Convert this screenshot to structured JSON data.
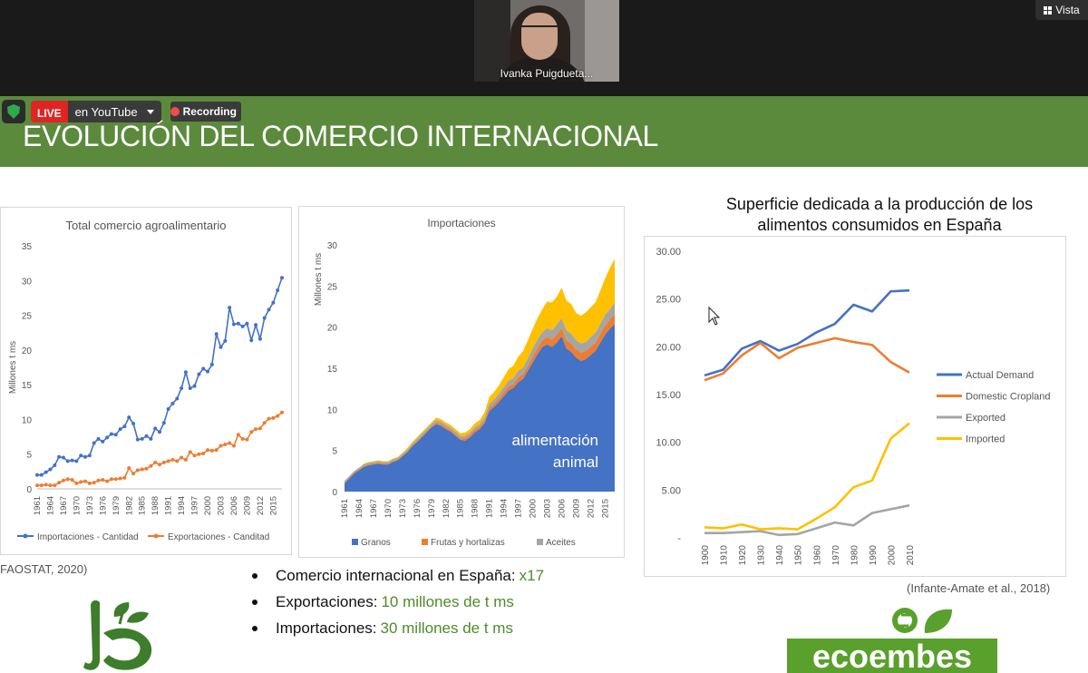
{
  "meeting": {
    "participant_name": "Ivanka Puigdueta...",
    "view_button_label": "Vista",
    "live_badge": "LIVE",
    "stream_target": "en YouTube",
    "recording_label": "Recording"
  },
  "slide": {
    "title": "EVOLUCIÓN DEL COMERCIO INTERNACIONAL",
    "source_left": "FAOSTAT, 2020)",
    "source_right": "(Infante-Amate et al., 2018)",
    "right_pane_title_line1": "Superficie dedicada a la producción de los",
    "right_pane_title_line2": "alimentos consumidos en España",
    "bullets": [
      {
        "text": "Comercio internacional en España:",
        "highlight": "x17"
      },
      {
        "text": "Exportaciones:",
        "highlight": "10 millones de t ms"
      },
      {
        "text": "Importaciones:",
        "highlight": "30 millones de t ms"
      }
    ],
    "logo_right_text": "ecoembes",
    "colors": {
      "green_band": "#5b8a3c",
      "highlight_green": "#4f8a2a",
      "blue": "#4472c4",
      "orange": "#ed7d31",
      "gray": "#a5a5a5",
      "yellow": "#ffc000"
    }
  },
  "chart_data": [
    {
      "type": "line",
      "title": "Total comercio agroalimentario",
      "ylabel": "Millones t ms",
      "ylim": [
        0,
        35
      ],
      "yticks": [
        "0",
        "5",
        "10",
        "15",
        "20",
        "25",
        "30",
        "35"
      ],
      "xticks": [
        "1961",
        "1964",
        "1967",
        "1970",
        "1973",
        "1976",
        "1979",
        "1982",
        "1985",
        "1988",
        "1991",
        "1994",
        "1997",
        "2000",
        "2003",
        "2006",
        "2009",
        "2012",
        "2015"
      ],
      "series": [
        {
          "name": "Importaciones - Cantidad",
          "color": "#4472c4",
          "x": [
            1961,
            1962,
            1963,
            1964,
            1965,
            1966,
            1967,
            1968,
            1969,
            1970,
            1971,
            1972,
            1973,
            1974,
            1975,
            1976,
            1977,
            1978,
            1979,
            1980,
            1981,
            1982,
            1983,
            1984,
            1985,
            1986,
            1987,
            1988,
            1989,
            1990,
            1991,
            1992,
            1993,
            1994,
            1995,
            1996,
            1997,
            1998,
            1999,
            2000,
            2001,
            2002,
            2003,
            2004,
            2005,
            2006,
            2007,
            2008,
            2009,
            2010,
            2011,
            2012,
            2013,
            2014,
            2015,
            2016,
            2017
          ],
          "y": [
            2.0,
            2.0,
            2.4,
            2.8,
            3.4,
            4.6,
            4.5,
            4.0,
            4.1,
            4.0,
            4.8,
            4.6,
            4.8,
            6.6,
            7.2,
            6.8,
            7.4,
            7.9,
            7.8,
            8.6,
            9.0,
            10.3,
            9.4,
            7.1,
            7.2,
            7.6,
            7.2,
            8.7,
            8.2,
            9.5,
            11.5,
            12.3,
            13.0,
            14.5,
            16.8,
            14.5,
            14.8,
            16.5,
            17.3,
            16.9,
            17.9,
            22.3,
            20.4,
            21.3,
            26.1,
            23.7,
            23.8,
            23.4,
            23.8,
            21.4,
            23.6,
            21.6,
            24.6,
            25.8,
            26.8,
            28.6,
            30.4
          ]
        },
        {
          "name": "Exportaciones - Canditad",
          "color": "#ed7d31",
          "x": [
            1961,
            1962,
            1963,
            1964,
            1965,
            1966,
            1967,
            1968,
            1969,
            1970,
            1971,
            1972,
            1973,
            1974,
            1975,
            1976,
            1977,
            1978,
            1979,
            1980,
            1981,
            1982,
            1983,
            1984,
            1985,
            1986,
            1987,
            1988,
            1989,
            1990,
            1991,
            1992,
            1993,
            1994,
            1995,
            1996,
            1997,
            1998,
            1999,
            2000,
            2001,
            2002,
            2003,
            2004,
            2005,
            2006,
            2007,
            2008,
            2009,
            2010,
            2011,
            2012,
            2013,
            2014,
            2015,
            2016,
            2017
          ],
          "y": [
            0.5,
            0.5,
            0.6,
            0.5,
            0.5,
            0.9,
            1.2,
            1.4,
            1.3,
            0.8,
            1.0,
            1.1,
            0.8,
            0.9,
            1.2,
            1.3,
            1.1,
            1.4,
            1.4,
            1.5,
            1.6,
            3.0,
            2.2,
            2.7,
            2.8,
            2.9,
            3.3,
            3.8,
            3.5,
            3.8,
            4.0,
            4.2,
            4.0,
            4.5,
            4.2,
            5.3,
            4.8,
            5.0,
            5.1,
            5.6,
            5.5,
            5.6,
            6.2,
            6.4,
            6.6,
            6.2,
            7.8,
            7.2,
            7.1,
            8.2,
            8.6,
            8.7,
            9.5,
            10.1,
            10.2,
            10.5,
            11.0
          ]
        }
      ],
      "legend": "bottom"
    },
    {
      "type": "area",
      "title": "Importaciones",
      "ylabel": "Millones t ms",
      "ylim": [
        0,
        30
      ],
      "yticks": [
        "0",
        "5",
        "10",
        "15",
        "20",
        "25",
        "30"
      ],
      "xticks": [
        "1961",
        "1964",
        "1967",
        "1970",
        "1973",
        "1976",
        "1979",
        "1982",
        "1985",
        "1988",
        "1991",
        "1994",
        "1997",
        "2000",
        "2003",
        "2006",
        "2009",
        "2012",
        "2015"
      ],
      "annotation": [
        "alimentación",
        "animal"
      ],
      "x": [
        1961,
        1962,
        1963,
        1964,
        1965,
        1966,
        1967,
        1968,
        1969,
        1970,
        1971,
        1972,
        1973,
        1974,
        1975,
        1976,
        1977,
        1978,
        1979,
        1980,
        1981,
        1982,
        1983,
        1984,
        1985,
        1986,
        1987,
        1988,
        1989,
        1990,
        1991,
        1992,
        1993,
        1994,
        1995,
        1996,
        1997,
        1998,
        1999,
        2000,
        2001,
        2002,
        2003,
        2004,
        2005,
        2006,
        2007,
        2008,
        2009,
        2010,
        2011,
        2012,
        2013,
        2014,
        2015,
        2016,
        2017
      ],
      "series": [
        {
          "name": "Granos",
          "color": "#4472c4",
          "values": [
            1.0,
            1.6,
            2.2,
            2.6,
            3.0,
            3.2,
            3.3,
            3.4,
            3.3,
            3.3,
            3.6,
            3.8,
            4.3,
            4.8,
            5.5,
            6.0,
            6.6,
            7.2,
            7.8,
            8.2,
            8.0,
            7.6,
            7.3,
            6.8,
            6.3,
            6.2,
            6.6,
            7.2,
            7.6,
            8.3,
            9.8,
            10.3,
            10.9,
            11.6,
            12.3,
            12.6,
            13.3,
            13.7,
            14.7,
            15.7,
            16.7,
            17.6,
            17.9,
            17.6,
            18.1,
            18.9,
            17.4,
            17.0,
            16.3,
            15.9,
            16.1,
            16.6,
            17.1,
            18.1,
            19.1,
            19.8,
            20.4
          ]
        },
        {
          "name": "Frutas y hortalizas",
          "color": "#ed7d31",
          "values": [
            0.1,
            0.1,
            0.1,
            0.1,
            0.1,
            0.1,
            0.1,
            0.1,
            0.1,
            0.1,
            0.1,
            0.1,
            0.1,
            0.1,
            0.1,
            0.1,
            0.1,
            0.1,
            0.1,
            0.2,
            0.2,
            0.2,
            0.2,
            0.2,
            0.2,
            0.3,
            0.3,
            0.3,
            0.3,
            0.3,
            0.4,
            0.4,
            0.4,
            0.5,
            0.5,
            0.5,
            0.6,
            0.6,
            0.6,
            0.7,
            0.8,
            0.8,
            0.9,
            0.9,
            1.0,
            1.0,
            1.0,
            1.0,
            1.0,
            1.0,
            1.0,
            1.0,
            1.0,
            1.1,
            1.1,
            1.1,
            1.2
          ]
        },
        {
          "name": "Aceites",
          "color": "#a5a5a5",
          "values": [
            0.2,
            0.2,
            0.2,
            0.2,
            0.2,
            0.2,
            0.2,
            0.2,
            0.2,
            0.2,
            0.2,
            0.2,
            0.2,
            0.2,
            0.2,
            0.3,
            0.3,
            0.3,
            0.3,
            0.3,
            0.3,
            0.3,
            0.3,
            0.3,
            0.3,
            0.3,
            0.3,
            0.3,
            0.3,
            0.4,
            0.5,
            0.5,
            0.6,
            0.6,
            0.7,
            0.7,
            0.8,
            0.8,
            0.9,
            1.0,
            1.0,
            1.0,
            1.1,
            1.1,
            1.2,
            1.2,
            1.2,
            1.2,
            1.1,
            1.1,
            1.1,
            1.2,
            1.2,
            1.2,
            1.3,
            1.3,
            1.4
          ]
        },
        {
          "name": "",
          "color": "#ffc000",
          "values": [
            0.0,
            0.0,
            0.0,
            0.0,
            0.1,
            0.1,
            0.1,
            0.1,
            0.1,
            0.1,
            0.1,
            0.1,
            0.1,
            0.2,
            0.2,
            0.2,
            0.2,
            0.2,
            0.2,
            0.3,
            0.3,
            0.3,
            0.3,
            0.3,
            0.3,
            0.4,
            0.4,
            0.5,
            0.5,
            0.6,
            0.8,
            0.9,
            1.0,
            1.2,
            1.4,
            1.5,
            1.7,
            2.0,
            2.2,
            2.4,
            2.6,
            2.8,
            3.2,
            3.4,
            3.4,
            3.7,
            3.6,
            3.6,
            3.3,
            3.4,
            3.6,
            3.6,
            3.7,
            4.0,
            4.4,
            5.0,
            5.3
          ]
        }
      ],
      "legend": "bottom"
    },
    {
      "type": "line",
      "title": "",
      "ylim": [
        0,
        30
      ],
      "yticks": [
        "-",
        "5.00",
        "10.00",
        "15.00",
        "20.00",
        "25.00",
        "30.00"
      ],
      "categories": [
        "1900",
        "1910",
        "1920",
        "1930",
        "1940",
        "1950",
        "1960",
        "1970",
        "1980",
        "1990",
        "2000",
        "2010"
      ],
      "series": [
        {
          "name": "Actual Demand",
          "color": "#4472c4",
          "values": [
            17.0,
            17.6,
            19.8,
            20.6,
            19.6,
            20.3,
            21.5,
            22.4,
            24.4,
            23.7,
            25.8,
            25.9
          ]
        },
        {
          "name": "Domestic Cropland",
          "color": "#ed7d31",
          "values": [
            16.5,
            17.2,
            19.1,
            20.4,
            18.8,
            19.9,
            20.4,
            20.9,
            20.5,
            20.2,
            18.4,
            17.3
          ]
        },
        {
          "name": "Exported",
          "color": "#a5a5a5",
          "values": [
            0.5,
            0.5,
            0.6,
            0.7,
            0.3,
            0.4,
            1.0,
            1.6,
            1.3,
            2.6,
            3.0,
            3.4
          ]
        },
        {
          "name": "Imported",
          "color": "#ffc000",
          "values": [
            1.1,
            1.0,
            1.4,
            0.9,
            1.0,
            0.9,
            2.0,
            3.2,
            5.3,
            6.0,
            10.4,
            12.0
          ]
        }
      ],
      "legend": "right"
    }
  ]
}
